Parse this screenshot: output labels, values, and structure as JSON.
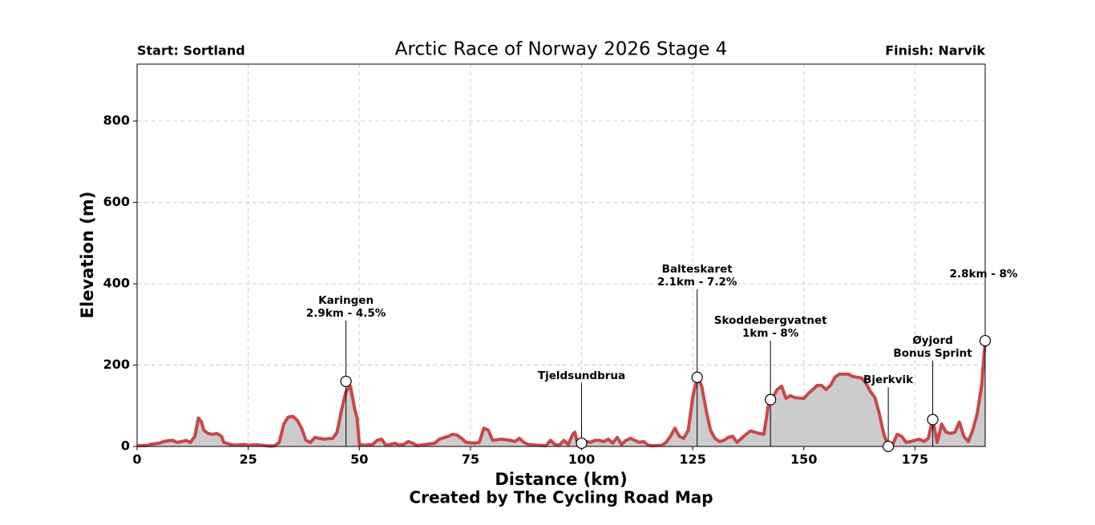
{
  "chart_data": {
    "type": "area",
    "title": "Arctic Race of Norway 2026 Stage 4",
    "start_label": "Start: Sortland",
    "finish_label": "Finish: Narvik",
    "x_label": "Distance (km)",
    "y_label": "Elevation (m)",
    "credit": "Created by The Cycling Road Map",
    "line_color": "#c8474a",
    "fill_color": "#cccccc",
    "grid": true,
    "xlim": [
      0,
      190.8
    ],
    "ylim": [
      0,
      940
    ],
    "xticks": [
      0,
      25,
      50,
      75,
      100,
      125,
      150,
      175
    ],
    "yticks": [
      0,
      200,
      400,
      600,
      800
    ],
    "x": [
      0,
      2,
      3,
      5,
      6,
      7,
      8,
      9,
      10,
      11,
      12,
      13,
      13.8,
      14.5,
      15,
      16,
      17,
      18,
      19,
      19.5,
      21,
      22,
      24,
      25,
      27,
      28,
      30,
      31,
      32,
      33,
      34,
      35,
      36,
      37,
      38,
      39,
      40,
      42,
      44,
      45,
      46,
      47,
      48,
      49,
      49.5,
      50,
      51,
      53,
      54,
      55,
      56,
      57,
      58,
      59,
      60,
      61,
      62,
      63,
      65,
      67,
      68,
      70,
      71,
      72,
      73,
      74,
      76,
      77,
      78,
      79,
      80,
      82,
      84,
      85,
      86,
      87,
      88,
      90,
      92,
      93,
      94,
      95,
      96,
      97,
      98,
      98.5,
      99,
      100,
      101,
      102,
      103,
      104,
      105,
      106,
      107,
      108,
      109,
      110,
      111,
      112,
      113,
      114,
      115,
      116,
      118,
      119,
      120,
      121,
      122,
      123,
      124,
      125,
      126,
      127,
      128,
      129,
      130,
      131,
      132,
      133,
      134,
      135,
      136,
      137,
      138,
      139,
      140,
      141,
      142,
      143,
      144,
      145,
      146,
      147,
      148,
      150,
      151,
      152,
      153,
      154,
      155,
      156,
      157,
      158,
      160,
      161,
      163,
      164,
      165,
      166,
      167,
      168,
      169,
      170,
      171,
      172,
      173,
      174,
      175,
      176,
      177,
      178,
      179,
      179.5,
      180,
      181,
      182,
      183,
      184,
      185,
      186,
      187,
      188,
      189,
      190,
      190.8
    ],
    "values": [
      2,
      2,
      5,
      8,
      12,
      14,
      15,
      10,
      12,
      15,
      10,
      25,
      70,
      60,
      40,
      32,
      30,
      32,
      25,
      10,
      5,
      3,
      5,
      3,
      4,
      3,
      1,
      2,
      10,
      55,
      72,
      74,
      65,
      45,
      15,
      10,
      22,
      18,
      20,
      35,
      90,
      135,
      148,
      90,
      70,
      5,
      3,
      5,
      15,
      18,
      3,
      5,
      8,
      3,
      5,
      12,
      8,
      2,
      5,
      8,
      18,
      25,
      30,
      28,
      20,
      10,
      8,
      10,
      45,
      40,
      15,
      18,
      15,
      12,
      20,
      10,
      5,
      3,
      2,
      15,
      5,
      3,
      15,
      5,
      30,
      35,
      10,
      8,
      12,
      10,
      15,
      15,
      12,
      18,
      8,
      22,
      5,
      15,
      20,
      15,
      10,
      12,
      3,
      2,
      3,
      10,
      25,
      45,
      25,
      20,
      40,
      120,
      170,
      150,
      90,
      40,
      20,
      12,
      15,
      22,
      25,
      10,
      20,
      30,
      38,
      35,
      32,
      30,
      100,
      120,
      140,
      148,
      118,
      125,
      120,
      118,
      130,
      140,
      150,
      150,
      140,
      150,
      170,
      178,
      178,
      172,
      168,
      155,
      135,
      120,
      80,
      30,
      0,
      5,
      30,
      25,
      10,
      12,
      15,
      18,
      12,
      20,
      66,
      40,
      10,
      55,
      35,
      32,
      35,
      60,
      25,
      12,
      40,
      80,
      150,
      260
    ],
    "annotations": [
      {
        "x": 47,
        "y": 160,
        "text": [
          "Karingen",
          "2.9km - 4.5%"
        ]
      },
      {
        "x": 100,
        "y": 8,
        "text": [
          "Tjeldsundbrua"
        ]
      },
      {
        "x": 126,
        "y": 170,
        "text": [
          "Balteskaret",
          "2.1km - 7.2%"
        ]
      },
      {
        "x": 142.5,
        "y": 115,
        "text": [
          "Skoddebergvatnet",
          "1km - 8%"
        ]
      },
      {
        "x": 169,
        "y": 0,
        "text": [
          "Bjerkvik"
        ]
      },
      {
        "x": 179,
        "y": 66,
        "text": [
          "Øyjord",
          "Bonus Sprint"
        ]
      },
      {
        "x": 190.8,
        "y": 260,
        "text": [
          "2.8km - 8%"
        ]
      }
    ]
  }
}
